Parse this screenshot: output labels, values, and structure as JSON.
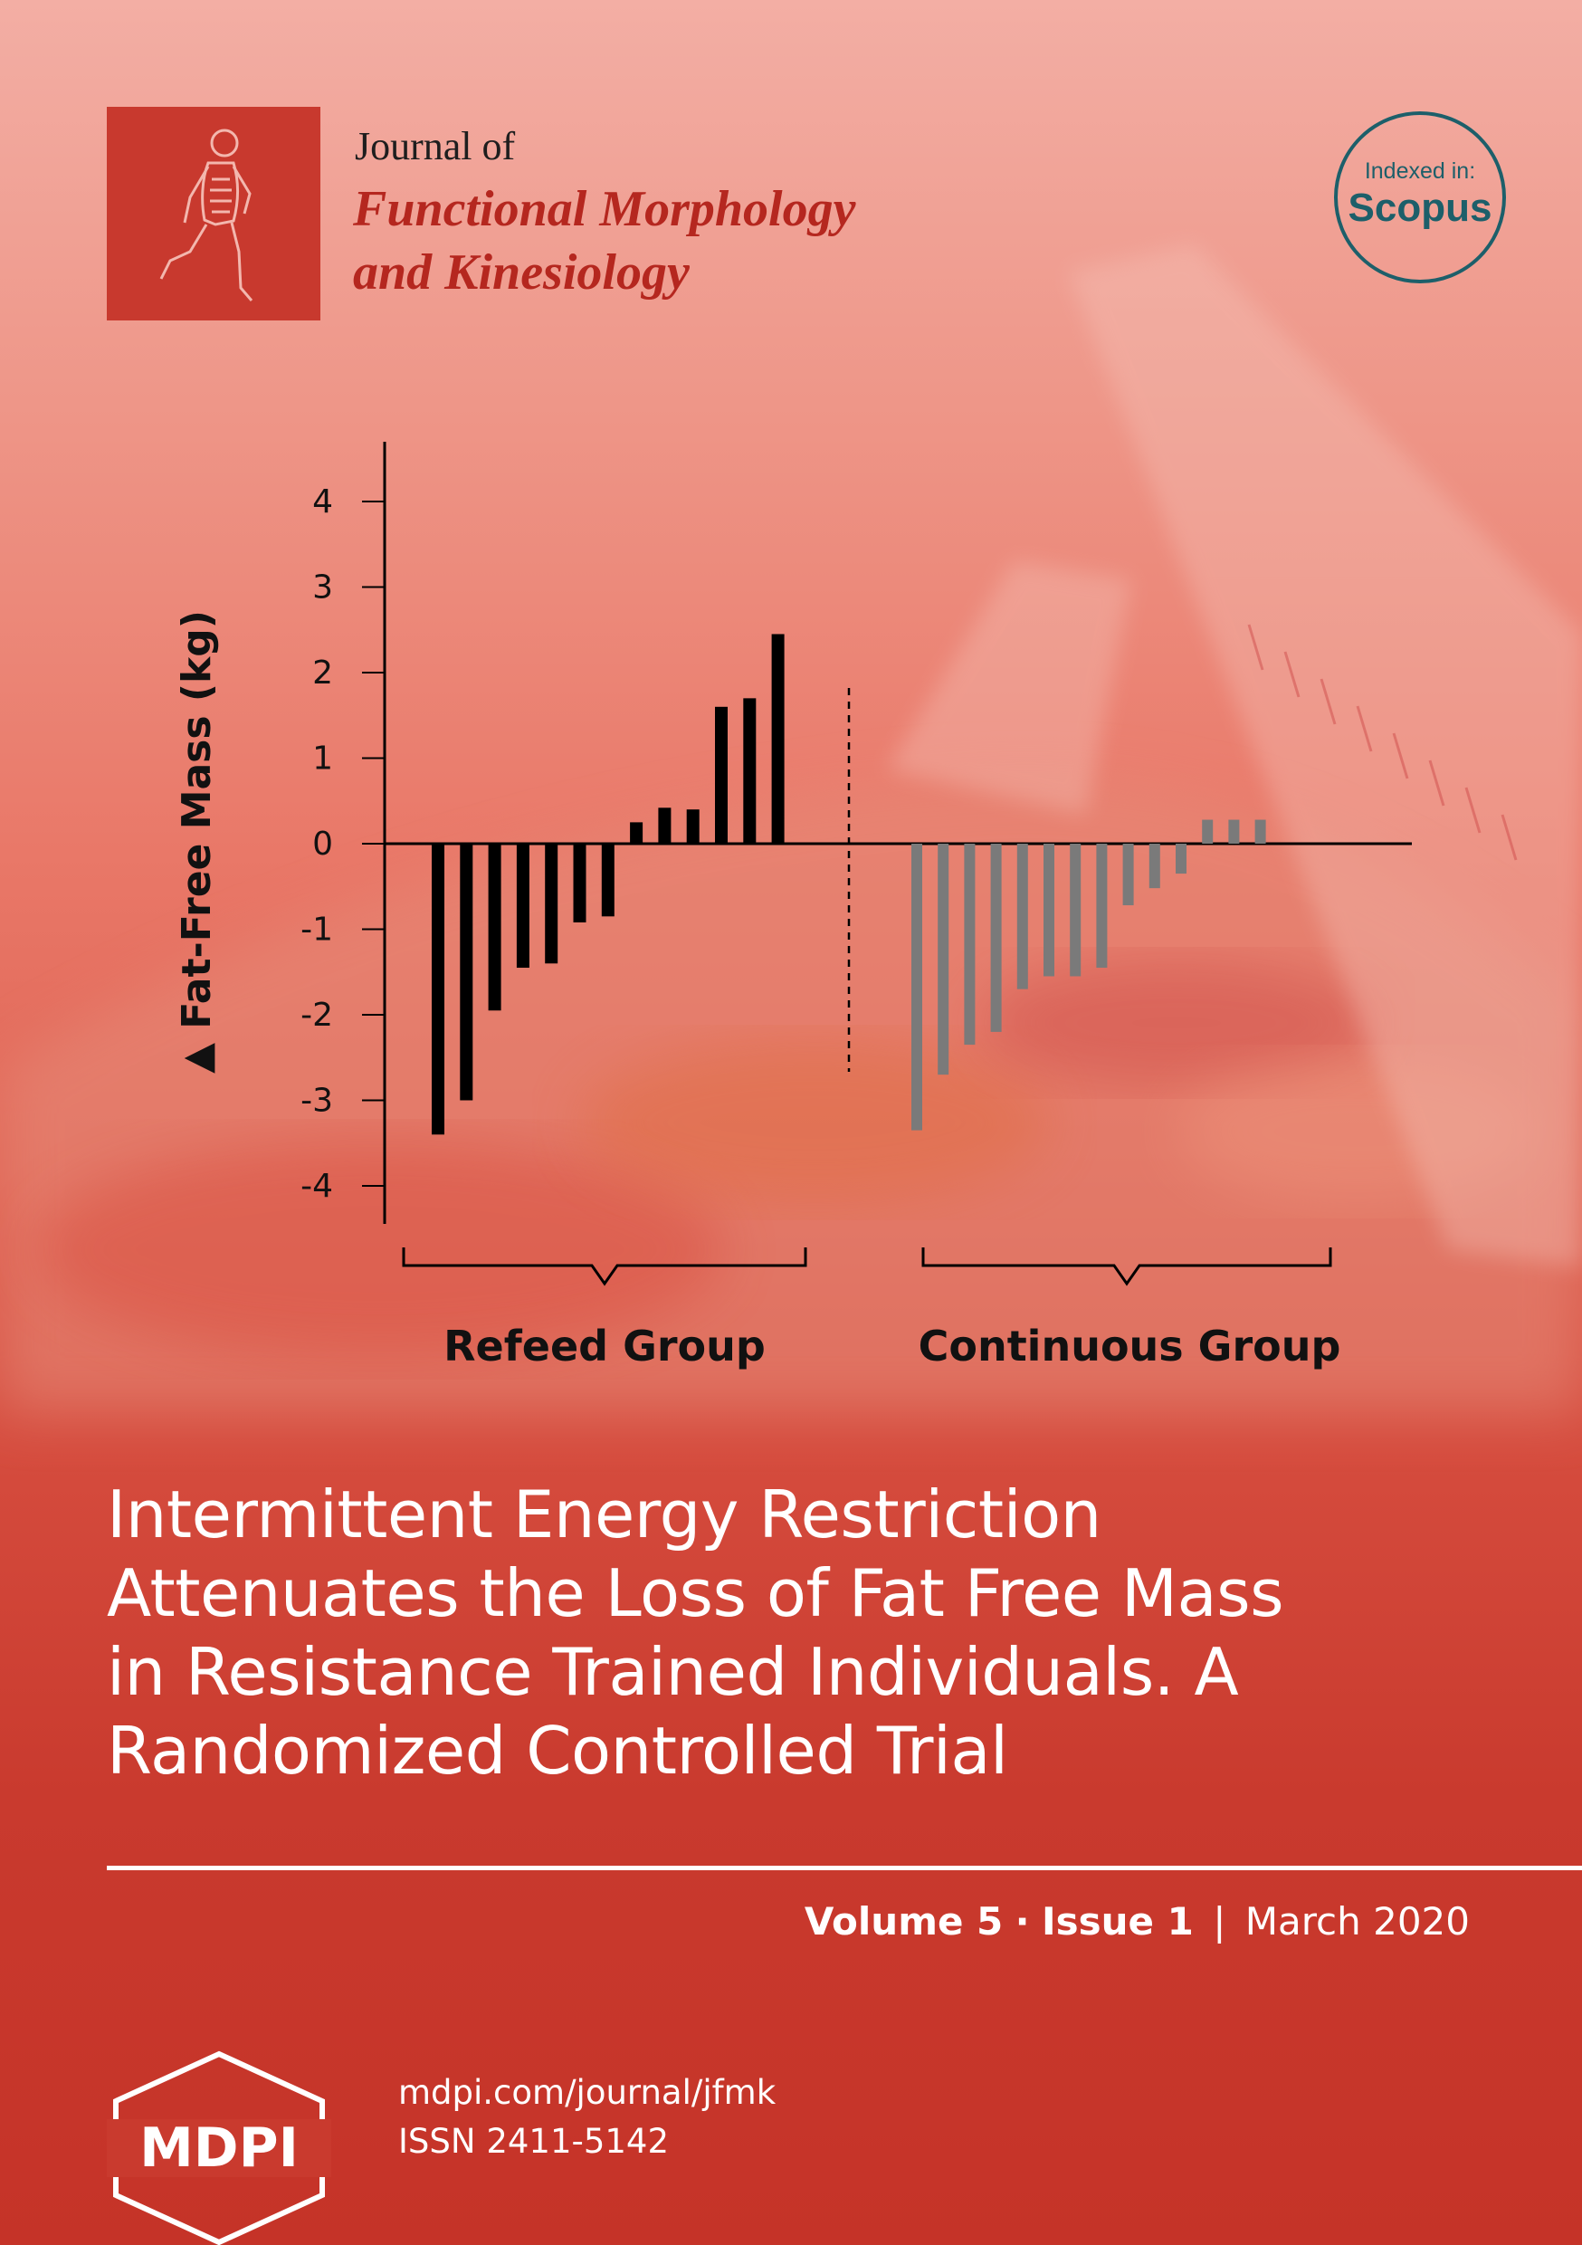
{
  "journal": {
    "line1": "Journal of",
    "name_line1": "Functional Morphology",
    "name_line2": "and Kinesiology"
  },
  "badge": {
    "top": "Indexed in:",
    "name": "Scopus"
  },
  "chart_data": {
    "type": "bar",
    "ylabel": "▲ Fat-Free Mass (kg)",
    "ylim": [
      -4.6,
      4.6
    ],
    "yticks": [
      4,
      3,
      2,
      1,
      0,
      -1,
      -2,
      -3,
      -4
    ],
    "groups": [
      {
        "name": "Refeed Group",
        "color": "#000000",
        "values": [
          -3.4,
          -3.0,
          -1.95,
          -1.45,
          -1.4,
          -0.92,
          -0.85,
          0.25,
          0.42,
          0.4,
          1.6,
          1.7,
          2.45
        ]
      },
      {
        "name": "Continuous Group",
        "color": "#7a7a7a",
        "values": [
          -3.35,
          -2.7,
          -2.35,
          -2.2,
          -1.7,
          -1.55,
          -1.55,
          -1.45,
          -0.72,
          -0.52,
          -0.35,
          0.28,
          0.28,
          0.28
        ]
      }
    ]
  },
  "article": {
    "title_lines": [
      "Intermittent Energy Restriction",
      "Attenuates the Loss of Fat Free Mass",
      "in Resistance Trained Individuals. A",
      "Randomized Controlled Trial"
    ]
  },
  "issue": {
    "volume": "Volume 5",
    "dot": "·",
    "issue": "Issue 1",
    "bar": "|",
    "date": "March 2020"
  },
  "publisher": {
    "logo_text": "MDPI",
    "url": "mdpi.com/journal/jfmk",
    "issn": "ISSN 2411-5142"
  }
}
